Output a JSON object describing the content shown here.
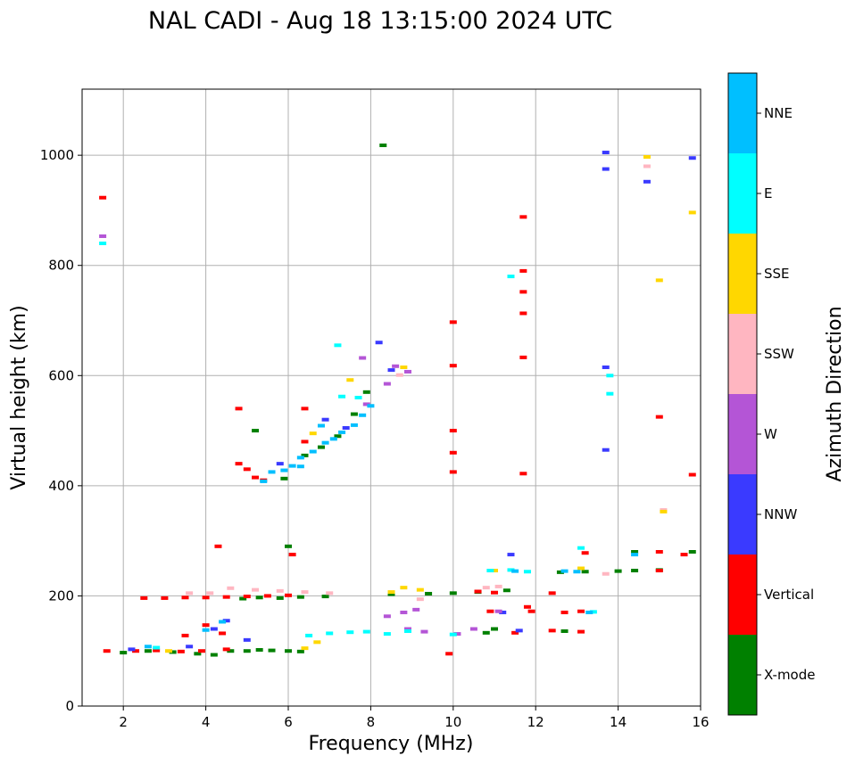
{
  "chart_data": {
    "type": "scatter",
    "title": "NAL CADI - Aug 18 13:15:00 2024 UTC",
    "xlabel": "Frequency (MHz)",
    "ylabel": "Virtual height (km)",
    "xlim": [
      1,
      16
    ],
    "ylim": [
      0,
      1120
    ],
    "xticks": [
      2,
      4,
      6,
      8,
      10,
      12,
      14,
      16
    ],
    "yticks": [
      0,
      200,
      400,
      600,
      800,
      1000
    ],
    "grid": true,
    "colorbar": {
      "title": "Azimuth Direction",
      "categories": [
        {
          "name": "X-mode",
          "color": "#008000"
        },
        {
          "name": "Vertical",
          "color": "#ff0000"
        },
        {
          "name": "NNW",
          "color": "#3a3aff"
        },
        {
          "name": "W",
          "color": "#b455d6"
        },
        {
          "name": "SSW",
          "color": "#ffb6c1"
        },
        {
          "name": "SSE",
          "color": "#ffd700"
        },
        {
          "name": "E",
          "color": "#00ffff"
        },
        {
          "name": "NNE",
          "color": "#00bfff"
        }
      ]
    },
    "series": [
      {
        "name": "X-mode",
        "points": [
          [
            2.0,
            97
          ],
          [
            2.6,
            100
          ],
          [
            3.2,
            98
          ],
          [
            3.8,
            95
          ],
          [
            4.2,
            93
          ],
          [
            4.6,
            100
          ],
          [
            5.0,
            100
          ],
          [
            5.3,
            102
          ],
          [
            5.6,
            101
          ],
          [
            6.0,
            100
          ],
          [
            6.3,
            99
          ],
          [
            4.9,
            195
          ],
          [
            5.3,
            197
          ],
          [
            5.8,
            196
          ],
          [
            6.3,
            198
          ],
          [
            6.9,
            199
          ],
          [
            8.5,
            203
          ],
          [
            9.4,
            204
          ],
          [
            10.0,
            205
          ],
          [
            10.6,
            207
          ],
          [
            11.3,
            210
          ],
          [
            12.6,
            243
          ],
          [
            13.2,
            244
          ],
          [
            14.0,
            245
          ],
          [
            14.4,
            246
          ],
          [
            15.0,
            247
          ],
          [
            15.8,
            280
          ],
          [
            14.4,
            280
          ],
          [
            5.9,
            413
          ],
          [
            6.4,
            455
          ],
          [
            6.8,
            470
          ],
          [
            7.2,
            490
          ],
          [
            7.6,
            530
          ],
          [
            7.9,
            570
          ],
          [
            5.2,
            500
          ],
          [
            6.0,
            290
          ],
          [
            8.3,
            1018
          ],
          [
            11.0,
            140
          ],
          [
            10.8,
            133
          ],
          [
            12.7,
            136
          ]
        ]
      },
      {
        "name": "Vertical",
        "points": [
          [
            1.6,
            100
          ],
          [
            2.3,
            100
          ],
          [
            2.8,
            101
          ],
          [
            3.4,
            99
          ],
          [
            3.9,
            100
          ],
          [
            4.5,
            103
          ],
          [
            3.5,
            128
          ],
          [
            4.0,
            147
          ],
          [
            4.4,
            132
          ],
          [
            2.5,
            196
          ],
          [
            3.0,
            196
          ],
          [
            3.5,
            197
          ],
          [
            4.0,
            197
          ],
          [
            4.5,
            198
          ],
          [
            5.0,
            199
          ],
          [
            5.5,
            200
          ],
          [
            6.0,
            201
          ],
          [
            4.3,
            290
          ],
          [
            6.1,
            275
          ],
          [
            10.6,
            208
          ],
          [
            11.0,
            206
          ],
          [
            12.4,
            205
          ],
          [
            11.9,
            172
          ],
          [
            12.7,
            170
          ],
          [
            13.1,
            172
          ],
          [
            10.9,
            172
          ],
          [
            11.5,
            133
          ],
          [
            12.4,
            137
          ],
          [
            13.1,
            135
          ],
          [
            9.9,
            95
          ],
          [
            15.0,
            246
          ],
          [
            15.0,
            280
          ],
          [
            15.6,
            275
          ],
          [
            13.2,
            278
          ],
          [
            5.0,
            430
          ],
          [
            5.2,
            415
          ],
          [
            5.4,
            410
          ],
          [
            4.8,
            440
          ],
          [
            6.4,
            480
          ],
          [
            6.4,
            540
          ],
          [
            4.8,
            540
          ],
          [
            10.0,
            425
          ],
          [
            10.0,
            460
          ],
          [
            10.0,
            500
          ],
          [
            10.0,
            618
          ],
          [
            10.0,
            697
          ],
          [
            11.7,
            422
          ],
          [
            11.7,
            633
          ],
          [
            11.7,
            713
          ],
          [
            11.7,
            752
          ],
          [
            11.7,
            790
          ],
          [
            11.7,
            888
          ],
          [
            15.0,
            525
          ],
          [
            15.8,
            420
          ],
          [
            1.5,
            923
          ],
          [
            11.8,
            180
          ]
        ]
      },
      {
        "name": "NNW",
        "points": [
          [
            2.2,
            103
          ],
          [
            3.6,
            108
          ],
          [
            4.2,
            140
          ],
          [
            4.5,
            155
          ],
          [
            5.0,
            120
          ],
          [
            8.2,
            660
          ],
          [
            8.5,
            610
          ],
          [
            13.7,
            615
          ],
          [
            13.7,
            465
          ],
          [
            13.7,
            975
          ],
          [
            13.7,
            1005
          ],
          [
            14.7,
            952
          ],
          [
            15.8,
            995
          ],
          [
            11.4,
            275
          ],
          [
            11.6,
            137
          ],
          [
            11.2,
            170
          ],
          [
            5.8,
            440
          ],
          [
            7.4,
            505
          ],
          [
            6.9,
            520
          ]
        ]
      },
      {
        "name": "W",
        "points": [
          [
            8.4,
            163
          ],
          [
            8.8,
            170
          ],
          [
            9.1,
            175
          ],
          [
            8.9,
            140
          ],
          [
            9.3,
            135
          ],
          [
            10.1,
            131
          ],
          [
            10.5,
            140
          ],
          [
            8.4,
            585
          ],
          [
            8.6,
            617
          ],
          [
            8.9,
            607
          ],
          [
            7.9,
            548
          ],
          [
            1.5,
            853
          ],
          [
            7.8,
            632
          ],
          [
            11.1,
            172
          ]
        ]
      },
      {
        "name": "SSW",
        "points": [
          [
            3.6,
            205
          ],
          [
            4.1,
            205
          ],
          [
            4.6,
            214
          ],
          [
            5.2,
            211
          ],
          [
            5.8,
            209
          ],
          [
            6.4,
            207
          ],
          [
            7.0,
            205
          ],
          [
            10.8,
            215
          ],
          [
            11.1,
            217
          ],
          [
            9.2,
            194
          ],
          [
            8.7,
            601
          ],
          [
            13.7,
            240
          ],
          [
            14.7,
            980
          ],
          [
            15.1,
            356
          ]
        ]
      },
      {
        "name": "SSE",
        "points": [
          [
            3.1,
            100
          ],
          [
            6.4,
            105
          ],
          [
            6.7,
            116
          ],
          [
            8.5,
            207
          ],
          [
            8.8,
            215
          ],
          [
            9.2,
            211
          ],
          [
            11.0,
            246
          ],
          [
            13.1,
            250
          ],
          [
            15.0,
            773
          ],
          [
            15.8,
            896
          ],
          [
            14.7,
            997
          ],
          [
            15.1,
            353
          ],
          [
            8.8,
            615
          ],
          [
            7.5,
            592
          ],
          [
            6.6,
            495
          ]
        ]
      },
      {
        "name": "E",
        "points": [
          [
            1.5,
            840
          ],
          [
            2.8,
            106
          ],
          [
            6.5,
            128
          ],
          [
            7.0,
            132
          ],
          [
            7.5,
            134
          ],
          [
            7.9,
            135
          ],
          [
            8.4,
            131
          ],
          [
            8.9,
            136
          ],
          [
            10.0,
            130
          ],
          [
            11.8,
            244
          ],
          [
            13.1,
            287
          ],
          [
            13.4,
            171
          ],
          [
            10.9,
            246
          ],
          [
            11.4,
            247
          ],
          [
            13.8,
            600
          ],
          [
            13.8,
            567
          ],
          [
            11.4,
            780
          ],
          [
            7.3,
            562
          ],
          [
            7.7,
            560
          ],
          [
            7.2,
            655
          ]
        ]
      },
      {
        "name": "NNE",
        "points": [
          [
            2.6,
            108
          ],
          [
            4.0,
            138
          ],
          [
            4.4,
            153
          ],
          [
            5.4,
            408
          ],
          [
            5.6,
            425
          ],
          [
            5.9,
            428
          ],
          [
            6.1,
            436
          ],
          [
            6.3,
            451
          ],
          [
            6.6,
            462
          ],
          [
            6.9,
            478
          ],
          [
            7.1,
            485
          ],
          [
            7.3,
            497
          ],
          [
            7.6,
            510
          ],
          [
            7.8,
            528
          ],
          [
            8.0,
            545
          ],
          [
            6.8,
            509
          ],
          [
            6.3,
            435
          ],
          [
            13.3,
            170
          ],
          [
            11.5,
            245
          ],
          [
            12.7,
            245
          ],
          [
            13.0,
            244
          ],
          [
            14.4,
            275
          ]
        ]
      }
    ]
  }
}
